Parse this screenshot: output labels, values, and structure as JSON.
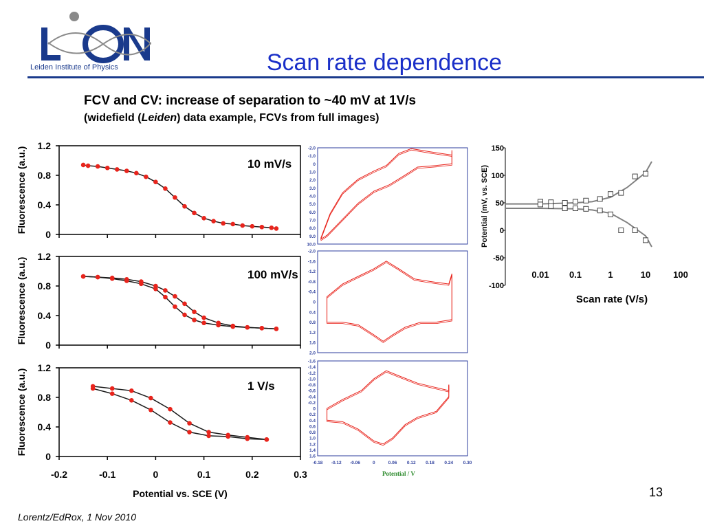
{
  "slide": {
    "title": "Scan rate dependence",
    "heading": "FCV and CV: increase of separation to ~40 mV at 1V/s",
    "subheading": {
      "before": "(widefield (",
      "italic": "Leiden",
      "after": ") data example, FCVs from full images)"
    },
    "footer": "Lorentz/EdRox, 1 Nov 2010",
    "page_number": "13",
    "logo_text": "Leiden Institute of Physics",
    "colors": {
      "title": "#1a2fc8",
      "rule": "#1a3a8c",
      "data": "#e8241c",
      "fit": "#1a1a1a",
      "cv": "#e8241c",
      "grey_fit": "#808080"
    }
  },
  "chart_data": [
    {
      "type": "scatter",
      "id": "fcv-10",
      "annotation": "10 mV/s",
      "ylabel": "Fluorescence (a.u.)",
      "ylim": [
        0,
        1.2
      ],
      "yticks": [
        "0",
        "0.4",
        "0.8",
        "1.2"
      ],
      "xlim": [
        -0.2,
        0.3
      ],
      "series": [
        {
          "values": [
            [
              -0.15,
              0.94
            ],
            [
              -0.14,
              0.93
            ],
            [
              -0.12,
              0.92
            ],
            [
              -0.1,
              0.9
            ],
            [
              -0.08,
              0.88
            ],
            [
              -0.06,
              0.86
            ],
            [
              -0.04,
              0.83
            ],
            [
              -0.02,
              0.78
            ],
            [
              0,
              0.71
            ],
            [
              0.02,
              0.62
            ],
            [
              0.04,
              0.5
            ],
            [
              0.06,
              0.38
            ],
            [
              0.08,
              0.29
            ],
            [
              0.1,
              0.22
            ],
            [
              0.12,
              0.18
            ],
            [
              0.14,
              0.15
            ],
            [
              0.16,
              0.14
            ],
            [
              0.18,
              0.12
            ],
            [
              0.2,
              0.11
            ],
            [
              0.22,
              0.1
            ],
            [
              0.24,
              0.09
            ],
            [
              0.25,
              0.08
            ]
          ]
        }
      ]
    },
    {
      "type": "scatter",
      "id": "fcv-100",
      "annotation": "100 mV/s",
      "ylabel": "Fluorescence (a.u.)",
      "ylim": [
        0,
        1.2
      ],
      "yticks": [
        "0",
        "0.4",
        "0.8",
        "1.2"
      ],
      "xlim": [
        -0.2,
        0.3
      ],
      "series": [
        {
          "values": [
            [
              -0.15,
              0.93
            ],
            [
              -0.12,
              0.92
            ],
            [
              -0.09,
              0.9
            ],
            [
              -0.06,
              0.87
            ],
            [
              -0.03,
              0.83
            ],
            [
              0,
              0.76
            ],
            [
              0.02,
              0.65
            ],
            [
              0.04,
              0.52
            ],
            [
              0.06,
              0.41
            ],
            [
              0.08,
              0.34
            ],
            [
              0.1,
              0.3
            ],
            [
              0.13,
              0.27
            ],
            [
              0.16,
              0.25
            ],
            [
              0.19,
              0.24
            ],
            [
              0.22,
              0.23
            ],
            [
              0.25,
              0.22
            ]
          ]
        },
        {
          "values": [
            [
              0.25,
              0.22
            ],
            [
              0.22,
              0.23
            ],
            [
              0.19,
              0.24
            ],
            [
              0.16,
              0.26
            ],
            [
              0.13,
              0.3
            ],
            [
              0.1,
              0.37
            ],
            [
              0.08,
              0.45
            ],
            [
              0.06,
              0.56
            ],
            [
              0.04,
              0.66
            ],
            [
              0.02,
              0.74
            ],
            [
              0,
              0.8
            ],
            [
              -0.03,
              0.86
            ],
            [
              -0.06,
              0.89
            ],
            [
              -0.09,
              0.91
            ],
            [
              -0.12,
              0.92
            ],
            [
              -0.15,
              0.93
            ]
          ]
        }
      ]
    },
    {
      "type": "line",
      "id": "fcv-1000",
      "annotation": "1 V/s",
      "ylabel": "Fluorescence (a.u.)",
      "xlabel": "Potential vs. SCE (V)",
      "ylim": [
        0,
        1.2
      ],
      "yticks": [
        "0",
        "0.4",
        "0.8",
        "1.2"
      ],
      "xlim": [
        -0.2,
        0.3
      ],
      "xticks": [
        "-0.2",
        "-0.1",
        "0",
        "0.1",
        "0.2",
        "0.3"
      ],
      "series": [
        {
          "values": [
            [
              -0.13,
              0.95
            ],
            [
              -0.09,
              0.92
            ],
            [
              -0.05,
              0.89
            ],
            [
              -0.01,
              0.79
            ],
            [
              0.03,
              0.64
            ],
            [
              0.07,
              0.45
            ],
            [
              0.11,
              0.33
            ],
            [
              0.15,
              0.29
            ],
            [
              0.19,
              0.26
            ],
            [
              0.23,
              0.23
            ]
          ]
        },
        {
          "values": [
            [
              0.23,
              0.23
            ],
            [
              0.19,
              0.24
            ],
            [
              0.15,
              0.27
            ],
            [
              0.11,
              0.28
            ],
            [
              0.07,
              0.33
            ],
            [
              0.03,
              0.46
            ],
            [
              -0.01,
              0.63
            ],
            [
              -0.05,
              0.76
            ],
            [
              -0.09,
              0.85
            ],
            [
              -0.13,
              0.92
            ]
          ]
        }
      ]
    },
    {
      "type": "line",
      "id": "cv-10",
      "ylim": [
        10,
        -2
      ],
      "yticks": [
        "-2.0",
        "-1.0",
        "0",
        "1.0",
        "2.0",
        "3.0",
        "4.0",
        "5.0",
        "6.0",
        "7.0",
        "8.0",
        "9.0",
        "10.0"
      ],
      "xlim": [
        -0.18,
        0.3
      ],
      "series": [
        {
          "values": [
            [
              -0.17,
              9.3
            ],
            [
              -0.14,
              6.2
            ],
            [
              -0.1,
              3.6
            ],
            [
              -0.05,
              1.9
            ],
            [
              0,
              0.9
            ],
            [
              0.04,
              0.2
            ],
            [
              0.08,
              -1.3
            ],
            [
              0.12,
              -1.9
            ],
            [
              0.18,
              -1.5
            ],
            [
              0.25,
              -1.1
            ]
          ]
        },
        {
          "values": [
            [
              0.25,
              -1.7
            ],
            [
              0.25,
              0.0
            ],
            [
              0.2,
              0.2
            ],
            [
              0.14,
              0.4
            ],
            [
              0.1,
              1.4
            ],
            [
              0.05,
              2.6
            ],
            [
              0.0,
              3.4
            ],
            [
              -0.05,
              4.9
            ],
            [
              -0.1,
              6.9
            ],
            [
              -0.15,
              8.9
            ],
            [
              -0.17,
              9.4
            ]
          ]
        }
      ]
    },
    {
      "type": "line",
      "id": "cv-100",
      "ylim": [
        2,
        -2
      ],
      "yticks": [
        "-2.0",
        "-1.6",
        "-1.2",
        "-0.8",
        "-0.4",
        "0",
        "0.4",
        "0.8",
        "1.2",
        "1.6",
        "2.0"
      ],
      "xlim": [
        -0.18,
        0.3
      ],
      "series": [
        {
          "values": [
            [
              -0.15,
              0.8
            ],
            [
              -0.15,
              -0.2
            ],
            [
              -0.1,
              -0.7
            ],
            [
              -0.05,
              -1.0
            ],
            [
              0.0,
              -1.3
            ],
            [
              0.04,
              -1.6
            ],
            [
              0.08,
              -1.3
            ],
            [
              0.13,
              -0.9
            ],
            [
              0.18,
              -0.8
            ],
            [
              0.24,
              -0.7
            ],
            [
              0.25,
              -1.1
            ]
          ]
        },
        {
          "values": [
            [
              0.25,
              -1.1
            ],
            [
              0.25,
              0.7
            ],
            [
              0.2,
              0.8
            ],
            [
              0.15,
              0.8
            ],
            [
              0.1,
              1.0
            ],
            [
              0.06,
              1.3
            ],
            [
              0.03,
              1.55
            ],
            [
              0.0,
              1.3
            ],
            [
              -0.05,
              0.9
            ],
            [
              -0.1,
              0.8
            ],
            [
              -0.15,
              0.8
            ]
          ]
        }
      ]
    },
    {
      "type": "line",
      "id": "cv-1000",
      "xlabel": "Potential / V",
      "ylim": [
        1.6,
        -1.6
      ],
      "yticks": [
        "-1.6",
        "-1.4",
        "-1.2",
        "-1.0",
        "-0.8",
        "-0.6",
        "-0.4",
        "-0.2",
        "0",
        "0.2",
        "0.4",
        "0.6",
        "0.8",
        "1.0",
        "1.2",
        "1.4",
        "1.6"
      ],
      "xlim": [
        -0.18,
        0.3
      ],
      "xticks": [
        "-0.18",
        "-0.12",
        "-0.06",
        "0",
        "0.06",
        "0.12",
        "0.18",
        "0.24",
        "0.30"
      ],
      "series": [
        {
          "values": [
            [
              -0.15,
              0.4
            ],
            [
              -0.15,
              0.0
            ],
            [
              -0.1,
              -0.3
            ],
            [
              -0.04,
              -0.6
            ],
            [
              0.0,
              -1.0
            ],
            [
              0.04,
              -1.27
            ],
            [
              0.08,
              -1.1
            ],
            [
              0.14,
              -0.85
            ],
            [
              0.2,
              -0.7
            ],
            [
              0.24,
              -0.6
            ],
            [
              0.24,
              -0.8
            ]
          ]
        },
        {
          "values": [
            [
              0.24,
              -0.8
            ],
            [
              0.24,
              -0.4
            ],
            [
              0.2,
              0.1
            ],
            [
              0.14,
              0.3
            ],
            [
              0.1,
              0.55
            ],
            [
              0.06,
              1.0
            ],
            [
              0.03,
              1.2
            ],
            [
              0.0,
              1.1
            ],
            [
              -0.05,
              0.7
            ],
            [
              -0.1,
              0.45
            ],
            [
              -0.15,
              0.4
            ]
          ]
        }
      ]
    },
    {
      "type": "scatter",
      "id": "trumpet",
      "ylabel": "Potential (mV, vs. SCE)",
      "xlabel": "Scan rate (V/s)",
      "xscale": "log",
      "xlim": [
        0.001,
        100
      ],
      "xticks": [
        "0.01",
        "0.1",
        "1",
        "10",
        "100"
      ],
      "ylim": [
        -100,
        150
      ],
      "yticks": [
        "150",
        "100",
        "50",
        "0",
        "-50",
        "-100"
      ],
      "series": [
        {
          "values": [
            [
              0.01,
              52
            ],
            [
              0.02,
              51
            ],
            [
              0.05,
              50
            ],
            [
              0.1,
              52
            ],
            [
              0.2,
              54
            ],
            [
              0.5,
              57
            ],
            [
              1,
              66
            ],
            [
              2,
              68
            ],
            [
              5,
              98
            ],
            [
              10,
              103
            ]
          ]
        },
        {
          "values": [
            [
              0.01,
              47
            ],
            [
              0.02,
              44
            ],
            [
              0.05,
              40
            ],
            [
              0.1,
              40
            ],
            [
              0.2,
              39
            ],
            [
              0.5,
              36
            ],
            [
              1,
              29
            ],
            [
              2,
              0
            ],
            [
              5,
              0
            ],
            [
              10,
              -18
            ]
          ]
        }
      ],
      "fit": {
        "upper": [
          [
            0.001,
            48
          ],
          [
            0.01,
            48
          ],
          [
            0.1,
            50
          ],
          [
            0.3,
            52
          ],
          [
            1,
            60
          ],
          [
            3,
            78
          ],
          [
            10,
            105
          ],
          [
            15,
            125
          ]
        ],
        "lower": [
          [
            0.001,
            40
          ],
          [
            0.01,
            40
          ],
          [
            0.1,
            39
          ],
          [
            0.3,
            37
          ],
          [
            1,
            31
          ],
          [
            3,
            14
          ],
          [
            10,
            -10
          ],
          [
            15,
            -30
          ]
        ]
      }
    }
  ]
}
